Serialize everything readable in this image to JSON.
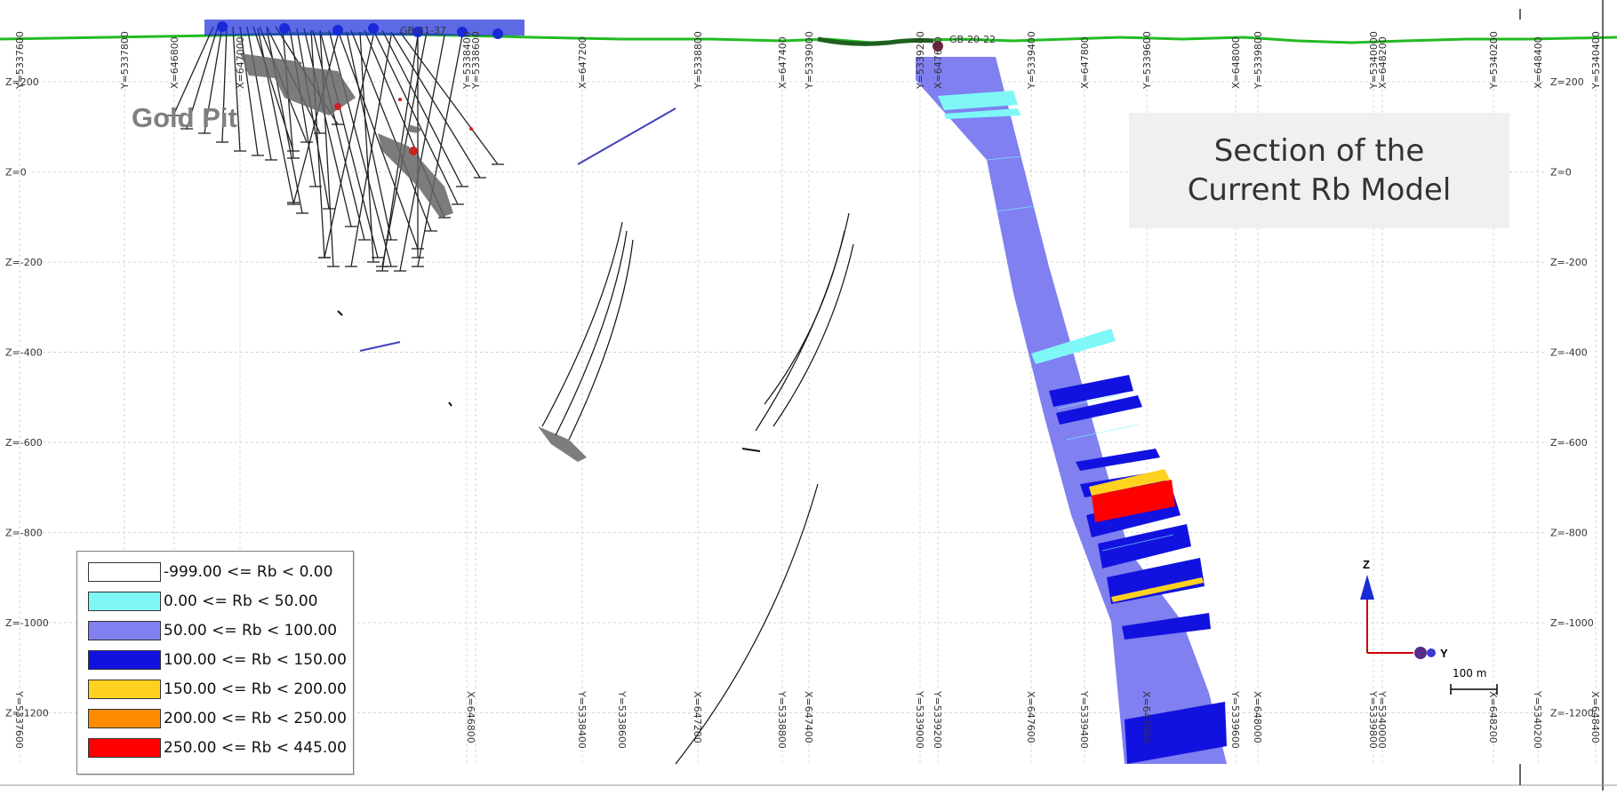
{
  "title": {
    "line1": "Section of the",
    "line2": "Current Rb Model"
  },
  "gold_pit_label": "Gold Pit",
  "hole_labels": {
    "main_hole": "GB-20-22",
    "cluster": "GB-21-37"
  },
  "z_levels": [
    "Z=200",
    "Z=0",
    "Z=-200",
    "Z=-400",
    "Z=-600",
    "Z=-800",
    "Z=-1000",
    "Z=-1200"
  ],
  "top_ticks": [
    "Y=5337600",
    "Y=5337800",
    "X=646800",
    "X=647000",
    "Y=5338400",
    "Y=5338600",
    "X=647200",
    "Y=5338800",
    "X=647400",
    "Y=5339000",
    "Y=5339200",
    "X=647600",
    "Y=5339400",
    "X=647800",
    "Y=5339600",
    "X=648000",
    "Y=5339800",
    "Y=5340000",
    "X=648200",
    "Y=5340200",
    "X=648400",
    "Y=5340400"
  ],
  "bottom_ticks": [
    "Y=5337600",
    "X=646800",
    "Y=5338400",
    "Y=5338600",
    "X=647200",
    "Y=5338800",
    "X=647400",
    "Y=5339000",
    "Y=5339200",
    "X=647600",
    "Y=5339400",
    "X=647800",
    "Y=5339600",
    "X=648000",
    "Y=5339800",
    "Y=5340000",
    "X=648200",
    "Y=5340200",
    "X=648400"
  ],
  "legend": [
    {
      "label": "-999.00 <= Rb < 0.00",
      "color": "#ffffff"
    },
    {
      "label": "0.00 <= Rb < 50.00",
      "color": "#7ff7f7"
    },
    {
      "label": "50.00 <= Rb < 100.00",
      "color": "#8080f0"
    },
    {
      "label": "100.00 <= Rb < 150.00",
      "color": "#1212e0"
    },
    {
      "label": "150.00 <= Rb < 200.00",
      "color": "#ffd21f"
    },
    {
      "label": "200.00 <= Rb < 250.00",
      "color": "#ff8c00"
    },
    {
      "label": "250.00 <= Rb < 445.00",
      "color": "#ff0000"
    }
  ],
  "compass": {
    "z_label": "Z",
    "y_label": "Y"
  },
  "scale_bar": {
    "label": "100 m"
  },
  "colors": {
    "topography": "#22bb22",
    "drillhole": "#111111",
    "grid": "#cfcfcf",
    "model_base": "#8080f0",
    "model_high": "#1212e0",
    "model_low": "#7ff7f7",
    "model_top": "#ff0000",
    "model_mid": "#ffd21f",
    "pit": "#555555"
  }
}
